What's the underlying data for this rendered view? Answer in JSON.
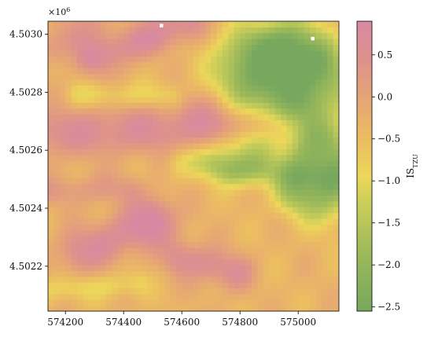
{
  "chart_data": {
    "type": "heatmap",
    "title": "",
    "xlabel": "",
    "ylabel": "",
    "x_offset_label": "",
    "y_offset_label": "×10",
    "y_offset_exponent": "6",
    "xlim": [
      574140,
      575140
    ],
    "ylim": [
      4502045,
      4503045
    ],
    "xticks": [
      574200,
      574400,
      574600,
      574800,
      575000
    ],
    "xtick_labels": [
      "574200",
      "574400",
      "574600",
      "574800",
      "575000"
    ],
    "yticks": [
      4502200,
      4502400,
      4502600,
      4502800,
      4503000
    ],
    "ytick_labels": [
      "4.5022",
      "4.5024",
      "4.5026",
      "4.5028",
      "4.5030"
    ],
    "colorbar": {
      "label": "IS",
      "label_subscript": "TZU",
      "vmin": -2.55,
      "vmax": 0.9,
      "ticks": [
        0.5,
        0.0,
        -0.5,
        -1.0,
        -1.5,
        -2.0,
        -2.5
      ],
      "tick_labels": [
        "0.5",
        "0.0",
        "−0.5",
        "−1.0",
        "−1.5",
        "−2.0",
        "−2.5"
      ],
      "colormap": [
        {
          "value": -2.55,
          "color": "#77a85e"
        },
        {
          "value": -1.9,
          "color": "#9ab85a"
        },
        {
          "value": -1.3,
          "color": "#c7cd5a"
        },
        {
          "value": -0.95,
          "color": "#ecd75a"
        },
        {
          "value": -0.5,
          "color": "#ebbc62"
        },
        {
          "value": 0.0,
          "color": "#e5a477"
        },
        {
          "value": 0.45,
          "color": "#dd918c"
        },
        {
          "value": 0.9,
          "color": "#d889a2"
        }
      ]
    },
    "grid_resolution_m": 20,
    "no_data_color": "#ffffff",
    "no_data_cells": [
      {
        "x": 574530,
        "y": 4503030
      },
      {
        "x": 575050,
        "y": 4502985
      }
    ],
    "value_field": {
      "description_of_source": "raster read from image",
      "components": [
        {
          "kind": "base",
          "value": -0.35
        },
        {
          "kind": "ridge",
          "x1": 574160,
          "y1": 4502660,
          "x2": 574900,
          "y2": 4502690,
          "width": 60,
          "amp": 0.95
        },
        {
          "kind": "ridge",
          "x1": 574300,
          "y1": 4502920,
          "x2": 574620,
          "y2": 4503040,
          "width": 45,
          "amp": 1.05
        },
        {
          "kind": "ridge",
          "x1": 574170,
          "y1": 4502950,
          "x2": 574280,
          "y2": 4503040,
          "width": 40,
          "amp": 0.7
        },
        {
          "kind": "ridge",
          "x1": 574250,
          "y1": 4502250,
          "x2": 574500,
          "y2": 4502350,
          "width": 55,
          "amp": 1.0
        },
        {
          "kind": "ridge",
          "x1": 574600,
          "y1": 4502230,
          "x2": 574780,
          "y2": 4502180,
          "width": 45,
          "amp": 0.95
        },
        {
          "kind": "ridge",
          "x1": 574150,
          "y1": 4502460,
          "x2": 574420,
          "y2": 4502470,
          "width": 35,
          "amp": 0.55
        },
        {
          "kind": "blob",
          "x": 574500,
          "y": 4502370,
          "radius": 60,
          "amp": 0.5
        },
        {
          "kind": "blob",
          "x": 574720,
          "y": 4502760,
          "radius": 70,
          "amp": 0.45
        },
        {
          "kind": "trench",
          "x1": 574600,
          "y1": 4502560,
          "x2": 575100,
          "y2": 4502500,
          "width": 40,
          "amp": -0.65
        },
        {
          "kind": "trench",
          "x1": 574150,
          "y1": 4502120,
          "x2": 574450,
          "y2": 4502140,
          "width": 30,
          "amp": -0.55
        },
        {
          "kind": "trench",
          "x1": 574250,
          "y1": 4502790,
          "x2": 574560,
          "y2": 4502790,
          "width": 30,
          "amp": -0.55
        },
        {
          "kind": "green_zone",
          "x": 574940,
          "y": 4502860,
          "rx": 210,
          "ry": 170,
          "amp": -2.3
        },
        {
          "kind": "green_zone",
          "x": 575080,
          "y": 4502530,
          "rx": 130,
          "ry": 160,
          "amp": -1.7
        },
        {
          "kind": "green_zone",
          "x": 574800,
          "y": 4502580,
          "rx": 110,
          "ry": 90,
          "amp": -1.1
        },
        {
          "kind": "blob",
          "x": 574950,
          "y": 4502930,
          "radius": 55,
          "amp": -0.7
        },
        {
          "kind": "blob",
          "x": 575050,
          "y": 4502900,
          "radius": 35,
          "amp": -0.35
        },
        {
          "kind": "blob",
          "x": 574960,
          "y": 4502430,
          "radius": 40,
          "amp": -0.45
        },
        {
          "kind": "blob",
          "x": 574920,
          "y": 4502640,
          "radius": 35,
          "amp": -0.45
        }
      ]
    }
  }
}
